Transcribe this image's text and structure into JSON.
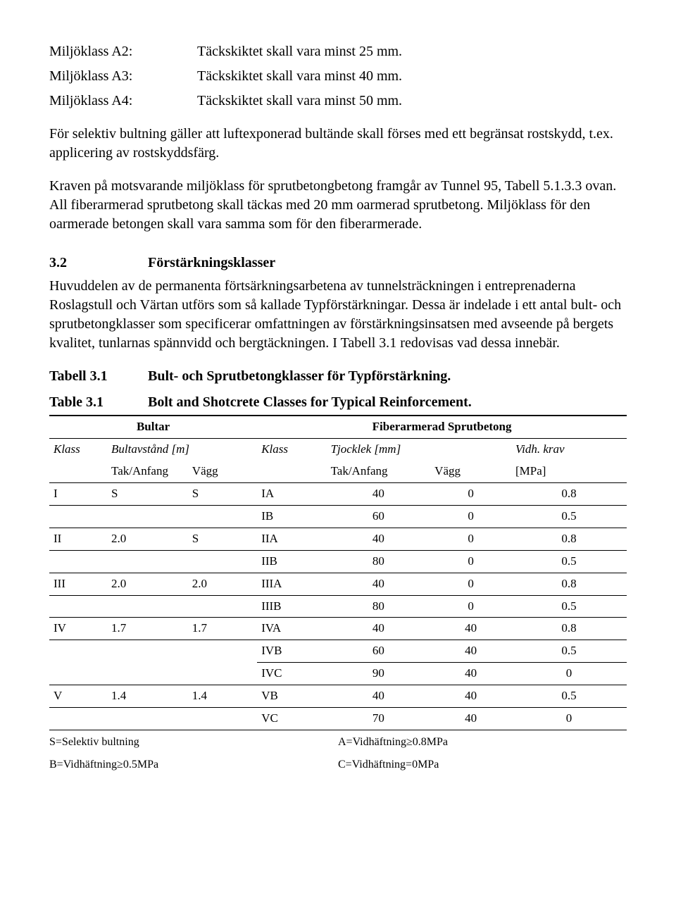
{
  "definitions": [
    {
      "label": "Miljöklass A2:",
      "value": "Täckskiktet skall vara minst 25 mm."
    },
    {
      "label": "Miljöklass A3:",
      "value": "Täckskiktet skall vara minst 40 mm."
    },
    {
      "label": "Miljöklass A4:",
      "value": "Täckskiktet skall vara minst 50 mm."
    }
  ],
  "para1": "För selektiv bultning gäller att luftexponerad bultände skall förses med ett begränsat rostskydd, t.ex. applicering av rostskyddsfärg.",
  "para2": "Kraven på motsvarande miljöklass för sprutbetongbetong framgår av Tunnel 95, Tabell 5.1.3.3 ovan. All fiberarmerad sprutbetong skall täckas med 20 mm oarmerad sprutbetong. Miljöklass för den oarmerade betongen skall vara samma som för den fiberarmerade.",
  "section": {
    "num": "3.2",
    "title": "Förstärkningsklasser"
  },
  "para3": "Huvuddelen av de permanenta förtsärkningsarbetena av tunnelsträckningen i entreprenaderna Roslagstull och Värtan utförs som så kallade Typförstärkningar. Dessa är indelade i ett antal bult- och sprutbetongklasser som specificerar omfattningen av förstärkningsinsatsen med avseende på bergets kvalitet, tunlarnas spännvidd och bergtäckningen. I Tabell 3.1 redovisas vad dessa innebär.",
  "table_caption_sv": {
    "label": "Tabell 3.1",
    "title": "Bult- och Sprutbetongklasser för Typförstärkning."
  },
  "table_caption_en": {
    "label": "Table 3.1",
    "title": "Bolt and Shotcrete Classes for Typical Reinforcement."
  },
  "table": {
    "group1": "Bultar",
    "group2": "Fiberarmerad Sprutbetong",
    "h_klass1": "Klass",
    "h_bultavstand": "Bultavstånd [m]",
    "h_klass2": "Klass",
    "h_tjocklek": "Tjocklek [mm]",
    "h_vidh": "Vidh. krav",
    "h_tak1": "Tak/Anfang",
    "h_vagg1": "Vägg",
    "h_tak2": "Tak/Anfang",
    "h_vagg2": "Vägg",
    "h_mpa": "[MPa]",
    "rows": [
      {
        "k1": "I",
        "t1": "S",
        "v1": "S",
        "k2": "IA",
        "t2": "40",
        "v2": "0",
        "m": "0.8",
        "end": false
      },
      {
        "k1": "",
        "t1": "",
        "v1": "",
        "k2": "IB",
        "t2": "60",
        "v2": "0",
        "m": "0.5",
        "end": true
      },
      {
        "k1": "II",
        "t1": "2.0",
        "v1": "S",
        "k2": "IIA",
        "t2": "40",
        "v2": "0",
        "m": "0.8",
        "end": false
      },
      {
        "k1": "",
        "t1": "",
        "v1": "",
        "k2": "IIB",
        "t2": "80",
        "v2": "0",
        "m": "0.5",
        "end": true
      },
      {
        "k1": "III",
        "t1": "2.0",
        "v1": "2.0",
        "k2": "IIIA",
        "t2": "40",
        "v2": "0",
        "m": "0.8",
        "end": false
      },
      {
        "k1": "",
        "t1": "",
        "v1": "",
        "k2": "IIIB",
        "t2": "80",
        "v2": "0",
        "m": "0.5",
        "end": true
      },
      {
        "k1": "IV",
        "t1": "1.7",
        "v1": "1.7",
        "k2": "IVA",
        "t2": "40",
        "v2": "40",
        "m": "0.8",
        "end": false
      },
      {
        "k1": "",
        "t1": "",
        "v1": "",
        "k2": "IVB",
        "t2": "60",
        "v2": "40",
        "m": "0.5",
        "end": false
      },
      {
        "k1": "",
        "t1": "",
        "v1": "",
        "k2": "IVC",
        "t2": "90",
        "v2": "40",
        "m": "0",
        "end": true
      },
      {
        "k1": "V",
        "t1": "1.4",
        "v1": "1.4",
        "k2": "VB",
        "t2": "40",
        "v2": "40",
        "m": "0.5",
        "end": false
      },
      {
        "k1": "",
        "t1": "",
        "v1": "",
        "k2": "VC",
        "t2": "70",
        "v2": "40",
        "m": "0",
        "end": true
      }
    ]
  },
  "legend": {
    "l1": "S=Selektiv bultning",
    "r1": "A=Vidhäftning≥0.8MPa",
    "l2": "B=Vidhäftning≥0.5MPa",
    "r2": "C=Vidhäftning=0MPa"
  }
}
